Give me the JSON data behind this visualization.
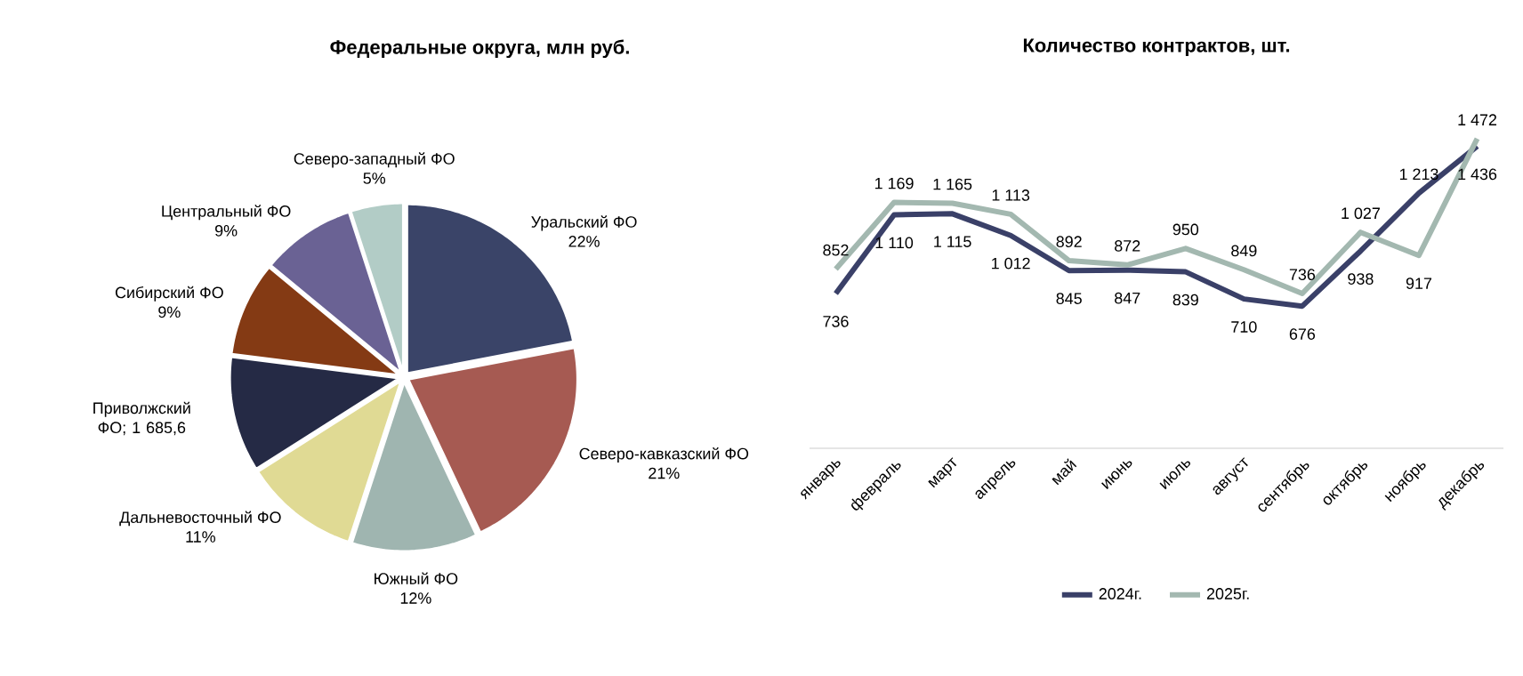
{
  "chart_data": [
    {
      "type": "pie",
      "title": "Федеральные округа, млн руб.",
      "categories": [
        "Уральский ФО",
        "Северо-кавказский ФО",
        "Южный ФО",
        "Дальневосточный ФО",
        "Приволжский ФО; 1 685,6",
        "Сибирский ФО",
        "Центральный ФО",
        "Северо-западный ФО"
      ],
      "values": [
        22,
        21,
        12,
        11,
        11,
        9,
        9,
        5
      ],
      "value_labels": [
        "22%",
        "21%",
        "12%",
        "11%",
        null,
        "9%",
        "9%",
        "5%"
      ],
      "colors": [
        "#3a4468",
        "#a65a52",
        "#9fb5b0",
        "#e0da94",
        "#252a45",
        "#843a14",
        "#6a6294",
        "#b2ccc6"
      ]
    },
    {
      "type": "line",
      "title": "Количество контрактов, шт.",
      "categories": [
        "январь",
        "февраль",
        "март",
        "апрель",
        "май",
        "июнь",
        "июль",
        "август",
        "сентябрь",
        "октябрь",
        "ноябрь",
        "декабрь"
      ],
      "series": [
        {
          "name": "2024г.",
          "color": "#3a4068",
          "values": [
            736,
            1110,
            1115,
            1012,
            845,
            847,
            839,
            710,
            676,
            938,
            1213,
            1436
          ],
          "value_labels": [
            "736",
            "1 110",
            "1 115",
            "1 012",
            "845",
            "847",
            "839",
            "710",
            "676",
            "938",
            "1 213",
            "1 436"
          ]
        },
        {
          "name": "2025г.",
          "color": "#a3b8b0",
          "values": [
            852,
            1169,
            1165,
            1113,
            892,
            872,
            950,
            849,
            736,
            1027,
            917,
            1472
          ],
          "value_labels": [
            "852",
            "1 169",
            "1 165",
            "1 113",
            "892",
            "872",
            "950",
            "849",
            "736",
            "1 027",
            "917",
            "1 472"
          ]
        }
      ],
      "tick_labels": "x",
      "legend": "bottom"
    }
  ]
}
